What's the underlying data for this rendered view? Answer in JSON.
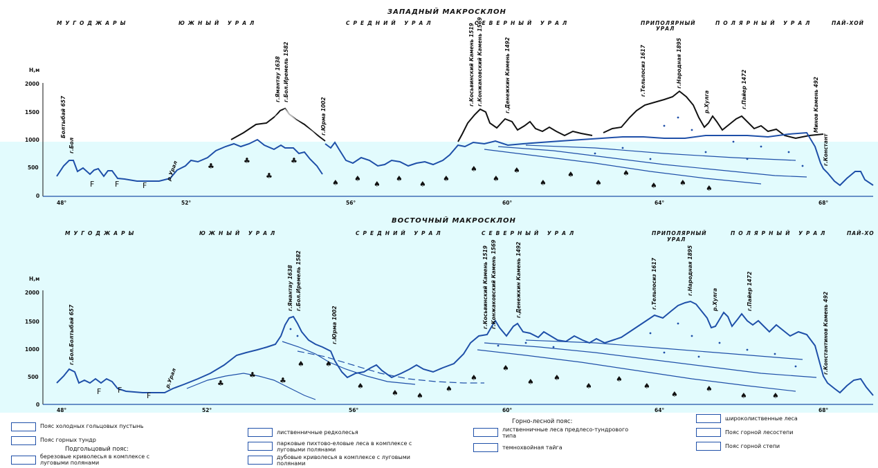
{
  "top_panel": {
    "title": "ЗАПАДНЫЙ МАКРОСКЛОН",
    "regions": [
      "МУГОДЖАРЫ",
      "ЮЖНЫЙ УРАЛ",
      "СРЕДНИЙ УРАЛ",
      "СЕВЕРНЫЙ УРАЛ",
      "ПРИПОЛЯРНЫЙ",
      "УРАЛ",
      "ПОЛЯРНЫЙ УРАЛ",
      "ПАЙ-ХОЙ"
    ],
    "y_axis_label": "Н,м",
    "y_ticks": [
      "2000",
      "1500",
      "1000",
      "500",
      "0"
    ],
    "x_ticks": [
      "48°",
      "52°",
      "56°",
      "60°",
      "64°",
      "68°"
    ],
    "peaks": [
      "Болтыбай 657",
      "г.Бол",
      "г.Ямантау 1638",
      "г.Бол.Иремель 1582",
      "г.Юрма 1002",
      "г.Косьвинский Камень 1519",
      "г.Конжаковский Камень 1569",
      "г.Денежкин Камень 1492",
      "г.Тельпосиз 1617",
      "г.Народная 1895",
      "р.Хулга",
      "г.Пайер 1472",
      "Минов Камень 492",
      "г.Констант"
    ],
    "rivers": [
      "р.Урал"
    ]
  },
  "bottom_panel": {
    "title": "ВОСТОЧНЫЙ МАКРОСКЛОН",
    "regions": [
      "МУГОДЖАРЫ",
      "ЮЖНЫЙ УРАЛ",
      "СРЕДНИЙ УРАЛ",
      "СЕВЕРНЫЙ УРАЛ",
      "ПРИПОЛЯРНЫЙ",
      "УРАЛ",
      "ПОЛЯРНЫЙ УРАЛ",
      "ПАЙ-ХО"
    ],
    "y_axis_label": "Н,м",
    "y_ticks": [
      "2000",
      "1500",
      "1000",
      "500",
      "0"
    ],
    "x_ticks": [
      "48°",
      "52°",
      "56°",
      "60°",
      "64°",
      "68°"
    ],
    "peaks": [
      "г.Бол.Болтыбай 657",
      "г.Ямантау 1638",
      "г.Бол.Иремель 1582",
      "г.Юрма 1002",
      "г.Косьвинский Камень 1519",
      "г.Конжаковский Камень 1569",
      "г.Денежкин Камень 1492",
      "г.Тельпосиз 1617",
      "г.Народная 1895",
      "р.Хулга",
      "г.Пайер 1472",
      "г.Константинов Камень 492"
    ],
    "rivers": [
      "р.Урал"
    ]
  },
  "legend": {
    "col1": [
      "Пояс холодных гольцовых пустынь",
      "Пояс горных тундр",
      "Подгольцовый пояс:",
      "березовые криволесья в комплексе с луговыми полянами"
    ],
    "col2": [
      "лиственничные редколесья",
      "парковые пихтово-еловые леса в комплексе с луговыми полянами",
      "дубовые криволесья в комплексе с луговыми полянами"
    ],
    "col3": [
      "Горно-лесной пояс:",
      "лиственничные леса предлесо-тундрового типа",
      "темнохвойная тайга"
    ],
    "col4": [
      "широколиственные леса",
      "Пояс горной лесостепи",
      "Пояс горной степи"
    ]
  },
  "colors": {
    "line": "#1e4fa8",
    "water": "#e2fbfd",
    "ink": "#111111"
  }
}
